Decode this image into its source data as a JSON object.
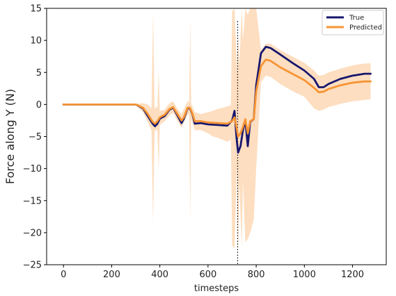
{
  "chart_data": {
    "type": "line",
    "title": "",
    "xlabel": "timesteps",
    "ylabel": "Force along Y (N)",
    "xlim": [
      -70,
      1340
    ],
    "ylim": [
      -25,
      15
    ],
    "xticks": [
      0,
      200,
      400,
      600,
      800,
      1000,
      1200
    ],
    "yticks": [
      15,
      10,
      5,
      0,
      -5,
      -10,
      -15,
      -20,
      -25
    ],
    "xtick_labels": [
      "0",
      "200",
      "400",
      "600",
      "800",
      "1000",
      "1200"
    ],
    "ytick_labels": [
      "15",
      "10",
      "5",
      "0",
      "−5",
      "−10",
      "−15",
      "−20",
      "−25"
    ],
    "grid": false,
    "legend_position": "top-right",
    "vline_x": 723,
    "series": [
      {
        "name": "True",
        "color": "#16166e",
        "points": [
          [
            0,
            0
          ],
          [
            100,
            0
          ],
          [
            200,
            0
          ],
          [
            300,
            0
          ],
          [
            330,
            -0.6
          ],
          [
            350,
            -1.8
          ],
          [
            370,
            -3.0
          ],
          [
            380,
            -3.4
          ],
          [
            390,
            -3.0
          ],
          [
            400,
            -2.2
          ],
          [
            420,
            -1.8
          ],
          [
            440,
            -0.8
          ],
          [
            455,
            -0.5
          ],
          [
            470,
            -1.5
          ],
          [
            490,
            -2.9
          ],
          [
            500,
            -2.2
          ],
          [
            515,
            -0.6
          ],
          [
            525,
            -0.6
          ],
          [
            535,
            -1.5
          ],
          [
            545,
            -3.0
          ],
          [
            570,
            -2.9
          ],
          [
            600,
            -3.1
          ],
          [
            640,
            -3.2
          ],
          [
            680,
            -3.3
          ],
          [
            700,
            -2.5
          ],
          [
            710,
            -1.0
          ],
          [
            718,
            -5.0
          ],
          [
            725,
            -7.5
          ],
          [
            735,
            -6.5
          ],
          [
            745,
            -4.0
          ],
          [
            755,
            -2.5
          ],
          [
            765,
            -6.5
          ],
          [
            775,
            -2.7
          ],
          [
            790,
            -2.3
          ],
          [
            800,
            3.0
          ],
          [
            820,
            8.0
          ],
          [
            840,
            9.0
          ],
          [
            860,
            8.8
          ],
          [
            900,
            7.8
          ],
          [
            950,
            6.5
          ],
          [
            1000,
            5.3
          ],
          [
            1040,
            4.0
          ],
          [
            1060,
            2.7
          ],
          [
            1080,
            2.7
          ],
          [
            1100,
            3.2
          ],
          [
            1150,
            4.0
          ],
          [
            1200,
            4.5
          ],
          [
            1250,
            4.8
          ],
          [
            1275,
            4.8
          ]
        ]
      },
      {
        "name": "Predicted",
        "color": "#f79433",
        "points": [
          [
            0,
            0
          ],
          [
            100,
            0
          ],
          [
            200,
            0
          ],
          [
            300,
            0
          ],
          [
            330,
            -0.5
          ],
          [
            350,
            -1.5
          ],
          [
            370,
            -2.7
          ],
          [
            380,
            -3.0
          ],
          [
            390,
            -2.6
          ],
          [
            400,
            -2.0
          ],
          [
            420,
            -1.6
          ],
          [
            440,
            -0.7
          ],
          [
            455,
            -0.4
          ],
          [
            470,
            -1.3
          ],
          [
            490,
            -2.5
          ],
          [
            500,
            -2.0
          ],
          [
            515,
            -0.5
          ],
          [
            525,
            -0.5
          ],
          [
            535,
            -1.4
          ],
          [
            545,
            -2.6
          ],
          [
            570,
            -2.6
          ],
          [
            600,
            -2.8
          ],
          [
            640,
            -2.9
          ],
          [
            680,
            -3.0
          ],
          [
            700,
            -2.6
          ],
          [
            710,
            -2.0
          ],
          [
            718,
            -3.5
          ],
          [
            725,
            -5.0
          ],
          [
            735,
            -4.5
          ],
          [
            745,
            -3.5
          ],
          [
            755,
            -2.3
          ],
          [
            765,
            -4.5
          ],
          [
            775,
            -2.6
          ],
          [
            790,
            -2.3
          ],
          [
            800,
            2.0
          ],
          [
            820,
            6.0
          ],
          [
            840,
            7.0
          ],
          [
            860,
            6.8
          ],
          [
            900,
            5.8
          ],
          [
            950,
            4.8
          ],
          [
            1000,
            3.8
          ],
          [
            1040,
            2.6
          ],
          [
            1060,
            1.9
          ],
          [
            1080,
            2.0
          ],
          [
            1100,
            2.4
          ],
          [
            1150,
            3.0
          ],
          [
            1200,
            3.4
          ],
          [
            1250,
            3.6
          ],
          [
            1275,
            3.6
          ]
        ]
      }
    ],
    "band": {
      "color": "#fdd8b5",
      "upper": [
        [
          0,
          0.1
        ],
        [
          300,
          0.1
        ],
        [
          330,
          0.2
        ],
        [
          350,
          0.0
        ],
        [
          365,
          -0.6
        ],
        [
          372,
          14.5
        ],
        [
          378,
          -0.8
        ],
        [
          383,
          -0.3
        ],
        [
          390,
          -0.5
        ],
        [
          395,
          5.2
        ],
        [
          400,
          -1.0
        ],
        [
          420,
          -0.8
        ],
        [
          440,
          0.2
        ],
        [
          455,
          0.5
        ],
        [
          470,
          -0.5
        ],
        [
          490,
          -1.5
        ],
        [
          515,
          0.5
        ],
        [
          522,
          0.4
        ],
        [
          526,
          13.5
        ],
        [
          530,
          0.2
        ],
        [
          545,
          -1.2
        ],
        [
          570,
          -1.5
        ],
        [
          600,
          -1.2
        ],
        [
          620,
          -1.0
        ],
        [
          640,
          -0.7
        ],
        [
          660,
          -0.5
        ],
        [
          680,
          -0.3
        ],
        [
          695,
          -0.1
        ],
        [
          700,
          14.5
        ],
        [
          710,
          15.0
        ],
        [
          720,
          5.0
        ],
        [
          725,
          11.0
        ],
        [
          730,
          6.0
        ],
        [
          740,
          15.0
        ],
        [
          745,
          10.0
        ],
        [
          755,
          15.0
        ],
        [
          765,
          14.0
        ],
        [
          775,
          15.0
        ],
        [
          790,
          15.0
        ],
        [
          800,
          15.0
        ],
        [
          820,
          8.5
        ],
        [
          840,
          9.5
        ],
        [
          860,
          9.5
        ],
        [
          900,
          8.5
        ],
        [
          950,
          7.5
        ],
        [
          1000,
          6.5
        ],
        [
          1040,
          5.3
        ],
        [
          1060,
          4.5
        ],
        [
          1080,
          4.6
        ],
        [
          1100,
          5.0
        ],
        [
          1150,
          5.6
        ],
        [
          1200,
          6.1
        ],
        [
          1250,
          6.4
        ],
        [
          1275,
          6.4
        ]
      ],
      "lower": [
        [
          0,
          -0.1
        ],
        [
          300,
          -0.1
        ],
        [
          330,
          -1.2
        ],
        [
          350,
          -2.8
        ],
        [
          365,
          -4.0
        ],
        [
          372,
          -18.6
        ],
        [
          378,
          -4.2
        ],
        [
          383,
          -4.0
        ],
        [
          390,
          -4.0
        ],
        [
          395,
          -10.3
        ],
        [
          400,
          -3.2
        ],
        [
          420,
          -2.6
        ],
        [
          440,
          -1.7
        ],
        [
          455,
          -1.3
        ],
        [
          470,
          -2.4
        ],
        [
          490,
          -3.6
        ],
        [
          515,
          -1.6
        ],
        [
          522,
          -1.5
        ],
        [
          526,
          -18.6
        ],
        [
          530,
          -2.2
        ],
        [
          545,
          -4.0
        ],
        [
          570,
          -4.0
        ],
        [
          600,
          -4.5
        ],
        [
          620,
          -5.0
        ],
        [
          640,
          -5.2
        ],
        [
          660,
          -5.5
        ],
        [
          680,
          -5.8
        ],
        [
          695,
          -5.5
        ],
        [
          700,
          -22.0
        ],
        [
          710,
          -22.5
        ],
        [
          720,
          -9.0
        ],
        [
          725,
          -22.5
        ],
        [
          730,
          -12.0
        ],
        [
          740,
          -22.5
        ],
        [
          745,
          -12.0
        ],
        [
          755,
          -21.5
        ],
        [
          765,
          -21.0
        ],
        [
          775,
          -20.0
        ],
        [
          790,
          -18.0
        ],
        [
          800,
          -10.0
        ],
        [
          820,
          3.5
        ],
        [
          840,
          4.5
        ],
        [
          860,
          4.3
        ],
        [
          900,
          3.2
        ],
        [
          950,
          2.1
        ],
        [
          1000,
          1.2
        ],
        [
          1040,
          -0.6
        ],
        [
          1060,
          -1.0
        ],
        [
          1080,
          -0.8
        ],
        [
          1100,
          -0.4
        ],
        [
          1150,
          0.1
        ],
        [
          1200,
          0.5
        ],
        [
          1250,
          0.7
        ],
        [
          1275,
          0.8
        ]
      ]
    }
  }
}
